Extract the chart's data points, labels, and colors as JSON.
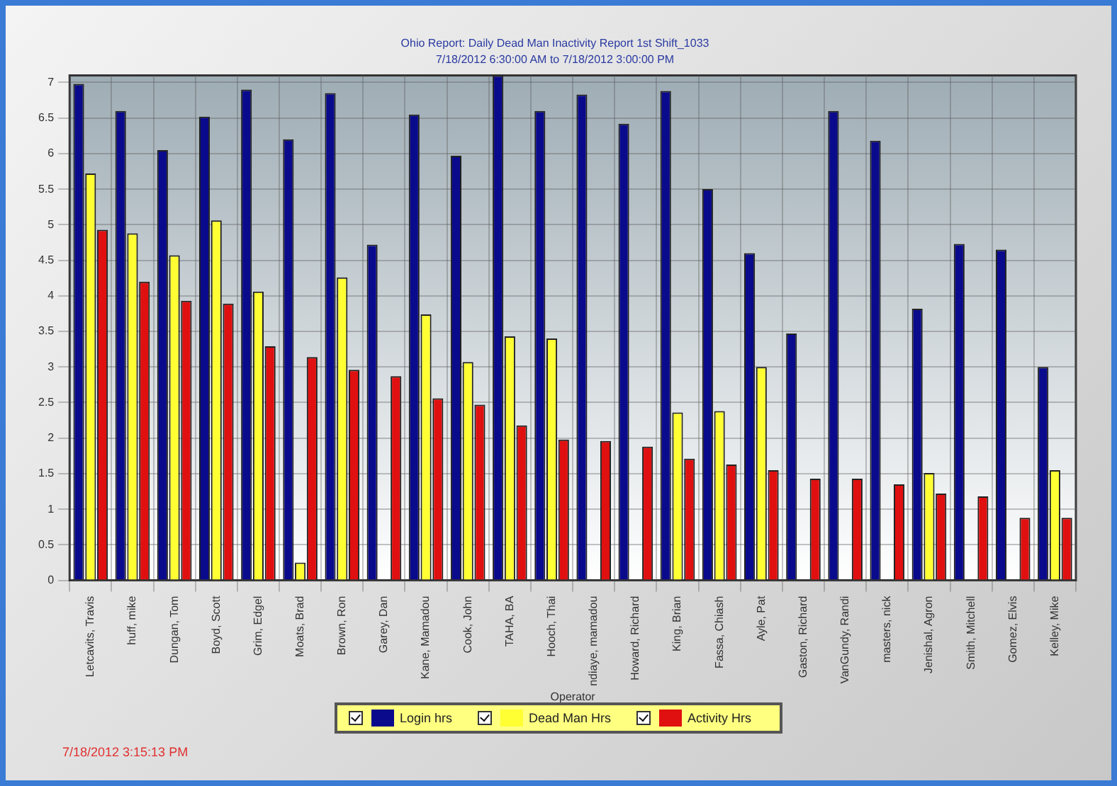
{
  "chart_data": {
    "type": "bar",
    "title": "Ohio Report: Daily Dead Man Inactivity Report 1st Shift_1033",
    "subtitle": "7/18/2012 6:30:00 AM to 7/18/2012 3:00:00 PM",
    "xlabel": "Operator",
    "categories": [
      "Letcavits, Travis",
      "huff, mike",
      "Dungan, Tom",
      "Boyd, Scott",
      "Grim, Edgel",
      "Moats, Brad",
      "Brown, Ron",
      "Garey, Dan",
      "Kane, Mamadou",
      "Cook, John",
      "TAHA, BA",
      "Hooch, Thai",
      "ndiaye, mamadou",
      "Howard, Richard",
      "King, Brian",
      "Fassa, Chiash",
      "Ayle, Pat",
      "Gaston, Richard",
      "VanGundy, Randi",
      "masters, nick",
      "Jenishal, Agron",
      "Smith, Mitchell",
      "Gomez, Elvis",
      "Kelley, Mike"
    ],
    "series": [
      {
        "name": "Login hrs",
        "color": "#0a0a8c",
        "values": [
          6.98,
          6.6,
          6.05,
          6.52,
          6.9,
          6.2,
          6.85,
          4.72,
          6.55,
          5.97,
          7.1,
          6.6,
          6.83,
          6.42,
          6.88,
          5.5,
          4.6,
          3.47,
          6.6,
          6.18,
          3.82,
          4.73,
          4.65,
          3.0
        ]
      },
      {
        "name": "Dead Man Hrs",
        "color": "#ffff33",
        "values": [
          5.72,
          4.88,
          4.57,
          5.06,
          4.06,
          0.25,
          4.26,
          0,
          3.74,
          3.07,
          3.43,
          3.4,
          0,
          0,
          2.36,
          2.38,
          3.0,
          0,
          0,
          0,
          1.51,
          0,
          0,
          1.55
        ]
      },
      {
        "name": "Activity Hrs",
        "color": "#e01010",
        "values": [
          4.93,
          4.2,
          3.93,
          3.89,
          3.29,
          3.14,
          2.96,
          2.87,
          2.56,
          2.47,
          2.18,
          1.98,
          1.96,
          1.88,
          1.71,
          1.63,
          1.55,
          1.43,
          1.43,
          1.35,
          1.22,
          1.18,
          0.88,
          0.88
        ]
      }
    ],
    "ylim": [
      0,
      7.1
    ],
    "yticks": [
      0,
      0.5,
      1,
      1.5,
      2,
      2.5,
      3,
      3.5,
      4,
      4.5,
      5,
      5.5,
      6,
      6.5,
      7
    ],
    "grid": true,
    "legend": "bottom",
    "annotations": [
      "7/18/2012 3:15:13 PM"
    ]
  }
}
